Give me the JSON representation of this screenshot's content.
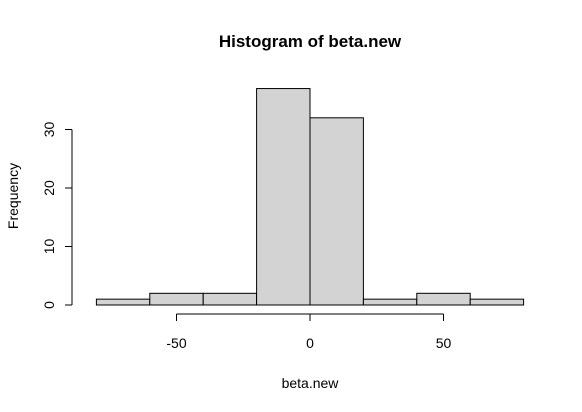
{
  "chart_data": {
    "type": "bar",
    "title": "Histogram of beta.new",
    "xlabel": "beta.new",
    "ylabel": "Frequency",
    "bins": [
      {
        "x0": -80,
        "x1": -60,
        "count": 1
      },
      {
        "x0": -60,
        "x1": -40,
        "count": 2
      },
      {
        "x0": -40,
        "x1": -20,
        "count": 2
      },
      {
        "x0": -20,
        "x1": 0,
        "count": 37
      },
      {
        "x0": 0,
        "x1": 20,
        "count": 32
      },
      {
        "x0": 20,
        "x1": 40,
        "count": 1
      },
      {
        "x0": 40,
        "x1": 60,
        "count": 2
      },
      {
        "x0": 60,
        "x1": 80,
        "count": 1
      }
    ],
    "xticks": [
      -50,
      0,
      50
    ],
    "yticks": [
      0,
      10,
      20,
      30
    ],
    "xlim": [
      -80,
      80
    ],
    "ylim": [
      0,
      37
    ],
    "bar_color": "#d3d3d3",
    "grid": false,
    "legend": "none"
  }
}
